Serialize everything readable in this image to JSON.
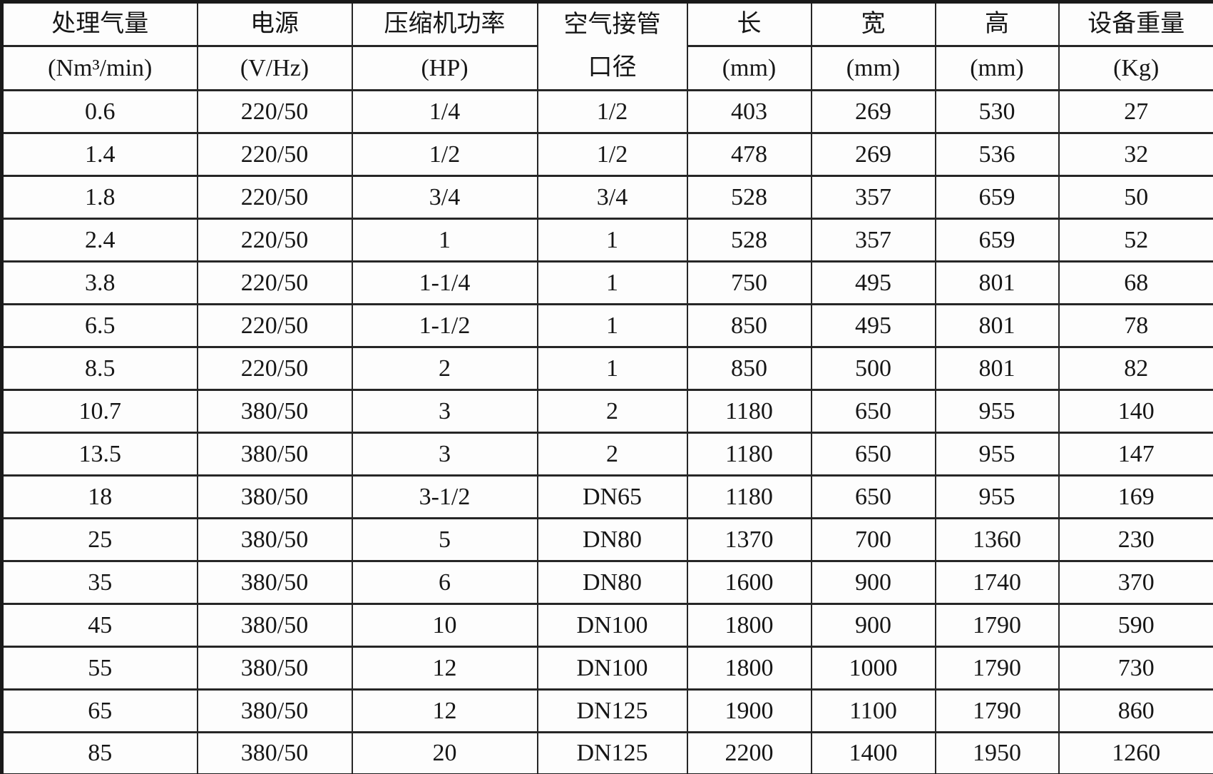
{
  "table": {
    "columns": [
      {
        "name": "处理气量",
        "unit": "(Nm³/min)"
      },
      {
        "name": "电源",
        "unit": "(V/Hz)"
      },
      {
        "name": "压缩机功率",
        "unit": "(HP)"
      },
      {
        "name": "空气接管口径",
        "name_line1": "空气接管",
        "name_line2": "口径",
        "unit": ""
      },
      {
        "name": "长",
        "unit": "(mm)"
      },
      {
        "name": "宽",
        "unit": "(mm)"
      },
      {
        "name": "高",
        "unit": "(mm)"
      },
      {
        "name": "设备重量",
        "unit": "(Kg)"
      }
    ],
    "rows": [
      [
        "0.6",
        "220/50",
        "1/4",
        "1/2",
        "403",
        "269",
        "530",
        "27"
      ],
      [
        "1.4",
        "220/50",
        "1/2",
        "1/2",
        "478",
        "269",
        "536",
        "32"
      ],
      [
        "1.8",
        "220/50",
        "3/4",
        "3/4",
        "528",
        "357",
        "659",
        "50"
      ],
      [
        "2.4",
        "220/50",
        "1",
        "1",
        "528",
        "357",
        "659",
        "52"
      ],
      [
        "3.8",
        "220/50",
        "1-1/4",
        "1",
        "750",
        "495",
        "801",
        "68"
      ],
      [
        "6.5",
        "220/50",
        "1-1/2",
        "1",
        "850",
        "495",
        "801",
        "78"
      ],
      [
        "8.5",
        "220/50",
        "2",
        "1",
        "850",
        "500",
        "801",
        "82"
      ],
      [
        "10.7",
        "380/50",
        "3",
        "2",
        "1180",
        "650",
        "955",
        "140"
      ],
      [
        "13.5",
        "380/50",
        "3",
        "2",
        "1180",
        "650",
        "955",
        "147"
      ],
      [
        "18",
        "380/50",
        "3-1/2",
        "DN65",
        "1180",
        "650",
        "955",
        "169"
      ],
      [
        "25",
        "380/50",
        "5",
        "DN80",
        "1370",
        "700",
        "1360",
        "230"
      ],
      [
        "35",
        "380/50",
        "6",
        "DN80",
        "1600",
        "900",
        "1740",
        "370"
      ],
      [
        "45",
        "380/50",
        "10",
        "DN100",
        "1800",
        "900",
        "1790",
        "590"
      ],
      [
        "55",
        "380/50",
        "12",
        "DN100",
        "1800",
        "1000",
        "1790",
        "730"
      ],
      [
        "65",
        "380/50",
        "12",
        "DN125",
        "1900",
        "1100",
        "1790",
        "860"
      ],
      [
        "85",
        "380/50",
        "20",
        "DN125",
        "2200",
        "1400",
        "1950",
        "1260"
      ]
    ]
  },
  "colors": {
    "border": "#262626",
    "outer_border": "#1a1a1a",
    "background": "#fdfdfd",
    "text": "#161616"
  }
}
